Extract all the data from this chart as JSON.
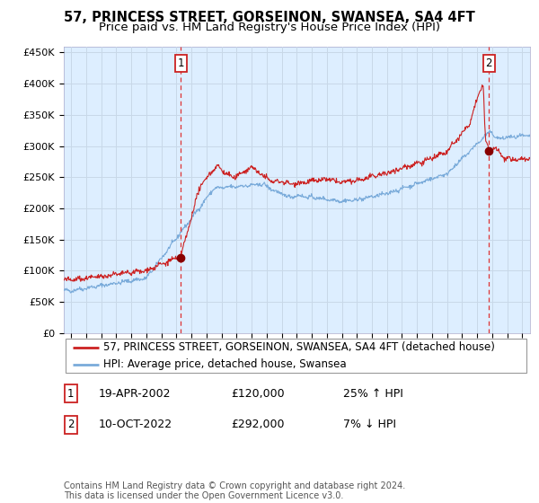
{
  "title": "57, PRINCESS STREET, GORSEINON, SWANSEA, SA4 4FT",
  "subtitle": "Price paid vs. HM Land Registry's House Price Index (HPI)",
  "legend_line1": "57, PRINCESS STREET, GORSEINON, SWANSEA, SA4 4FT (detached house)",
  "legend_line2": "HPI: Average price, detached house, Swansea",
  "annotation1_date": "19-APR-2002",
  "annotation1_price": "£120,000",
  "annotation1_hpi": "25% ↑ HPI",
  "annotation2_date": "10-OCT-2022",
  "annotation2_price": "£292,000",
  "annotation2_hpi": "7% ↓ HPI",
  "footer": "Contains HM Land Registry data © Crown copyright and database right 2024.\nThis data is licensed under the Open Government Licence v3.0.",
  "hpi_color": "#7aabda",
  "price_color": "#cc2222",
  "marker_color": "#880000",
  "fig_bg": "#ffffff",
  "plot_bg": "#ddeeff",
  "grid_color": "#c8d8e8",
  "vline_color": "#dd3333",
  "ylim": [
    0,
    460000
  ],
  "xlim_start": 1994.5,
  "xlim_end": 2025.5,
  "sale1_year": 2002.3,
  "sale1_price": 120000,
  "sale2_year": 2022.78,
  "sale2_price": 292000,
  "title_fontsize": 10.5,
  "subtitle_fontsize": 9.5,
  "axis_fontsize": 8,
  "legend_fontsize": 8.5,
  "annot_fontsize": 9,
  "footer_fontsize": 7
}
